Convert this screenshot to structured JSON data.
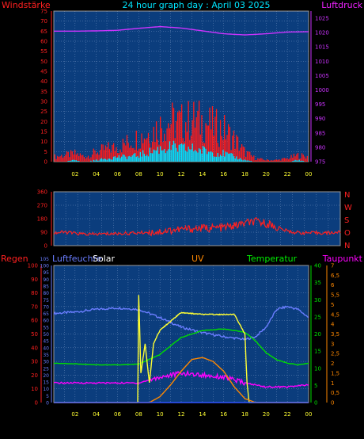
{
  "panel1": {
    "left_label": "Windstärke",
    "title": "24 hour graph day : April 03 2025",
    "right_label": "Luftdruck"
  },
  "panel3": {
    "labels": [
      "Regen",
      "Luftfeuchte",
      "Solar",
      "UV",
      "Temperatur",
      "Taupunkt"
    ]
  },
  "colors": {
    "background": "#000000",
    "plot_bg": "#0b3d7d",
    "grid": "#6f8fbf",
    "wind_speed": "#ff1a1a",
    "wind_gust": "#00e5ff",
    "pressure": "#cc33ff",
    "wind_dir": "#ff2020",
    "humidity": "#6a7dff",
    "solar": "#ffff33",
    "uv": "#ff8800",
    "temperature": "#00dd00",
    "dewpoint": "#ff00ff",
    "rain": "#3355ff"
  },
  "chart_data": [
    {
      "type": "line",
      "title": "24 hour graph day : April 03 2025",
      "xlabel": "",
      "x_tick_labels": [
        "02",
        "04",
        "06",
        "08",
        "10",
        "12",
        "14",
        "16",
        "18",
        "20",
        "22",
        "00"
      ],
      "y_left": {
        "label": "Windstärke",
        "ticks": [
          0,
          5,
          10,
          15,
          20,
          25,
          30,
          35,
          40,
          45,
          50,
          55,
          60,
          65,
          70,
          75
        ],
        "range": [
          0,
          75
        ]
      },
      "y_right": {
        "label": "Luftdruck",
        "ticks": [
          975,
          980,
          985,
          990,
          995,
          1000,
          1005,
          1010,
          1015,
          1020,
          1025
        ],
        "range": [
          975,
          1027.5
        ]
      },
      "series": [
        {
          "name": "",
          "axis": "left",
          "style": "bars",
          "x": [
            0,
            1,
            2,
            3,
            4,
            5,
            6,
            7,
            8,
            9,
            10,
            11,
            12,
            13,
            14,
            15,
            16,
            17,
            18,
            19,
            20,
            21,
            22,
            23,
            24
          ],
          "values": [
            3,
            4,
            5,
            3,
            6,
            8,
            9,
            12,
            15,
            18,
            22,
            25,
            24,
            26,
            25,
            22,
            20,
            14,
            6,
            2,
            1,
            1,
            2,
            4,
            3
          ]
        },
        {
          "name": "",
          "axis": "left",
          "style": "bars",
          "x": [
            0,
            1,
            2,
            3,
            4,
            5,
            6,
            7,
            8,
            9,
            10,
            11,
            12,
            13,
            14,
            15,
            16,
            17,
            18,
            19,
            20,
            21,
            22,
            23,
            24
          ],
          "values": [
            0,
            0,
            1,
            0,
            1,
            2,
            3,
            3,
            4,
            6,
            8,
            9,
            8,
            8,
            7,
            6,
            5,
            3,
            1,
            0,
            0,
            0,
            0,
            1,
            0
          ]
        },
        {
          "name": "",
          "axis": "right",
          "style": "line",
          "x": [
            0,
            2,
            4,
            6,
            8,
            10,
            12,
            14,
            16,
            18,
            20,
            22,
            24
          ],
          "values": [
            1020.5,
            1020.5,
            1020.6,
            1020.8,
            1021.5,
            1022.1,
            1021.6,
            1020.6,
            1019.6,
            1019.2,
            1019.6,
            1020.2,
            1020.3
          ]
        }
      ]
    },
    {
      "type": "line",
      "title": "",
      "y_left": {
        "ticks": [
          0,
          90,
          180,
          270,
          360
        ],
        "range": [
          0,
          360
        ]
      },
      "y_right": {
        "ticks": [
          "N",
          "W",
          "S",
          "O",
          "N"
        ]
      },
      "series": [
        {
          "name": "",
          "x": [
            0,
            1,
            2,
            3,
            4,
            5,
            6,
            7,
            8,
            9,
            10,
            11,
            12,
            13,
            14,
            15,
            16,
            17,
            18,
            19,
            20,
            21,
            22,
            23,
            24
          ],
          "values": [
            85,
            90,
            80,
            75,
            78,
            80,
            82,
            85,
            90,
            95,
            105,
            110,
            115,
            118,
            120,
            130,
            150,
            160,
            145,
            110,
            90,
            85,
            85,
            85,
            90
          ]
        }
      ]
    },
    {
      "type": "line",
      "title": "",
      "axes": {
        "rain": {
          "ticks": [
            0,
            10,
            20,
            30,
            40,
            50,
            60,
            70,
            80,
            90,
            100
          ],
          "range": [
            0,
            100
          ]
        },
        "humidity": {
          "ticks": [
            0,
            5,
            10,
            15,
            20,
            25,
            30,
            35,
            40,
            45,
            50,
            55,
            60,
            65,
            70,
            75,
            80,
            85,
            90,
            95,
            100,
            105
          ],
          "range": [
            0,
            100
          ]
        },
        "temperature": {
          "ticks": [
            0,
            5,
            10,
            15,
            20,
            25,
            30,
            35,
            40
          ],
          "range": [
            0,
            40
          ]
        },
        "dewpoint_uv": {
          "ticks": [
            0,
            0.5,
            1,
            1.5,
            2,
            2.5,
            3,
            3.5,
            4,
            4.5,
            5,
            5.5,
            6,
            6.5,
            7
          ],
          "range": [
            0,
            7
          ]
        }
      },
      "series": [
        {
          "name": "Luftfeuchte",
          "axis": "humidity",
          "x": [
            0,
            2,
            4,
            6,
            8,
            10,
            12,
            14,
            16,
            18,
            19,
            20,
            21,
            22,
            23,
            24
          ],
          "values": [
            65,
            66,
            68,
            69,
            68,
            62,
            55,
            51,
            48,
            46,
            48,
            55,
            68,
            70,
            68,
            62
          ]
        },
        {
          "name": "Temperatur",
          "axis": "temperature",
          "x": [
            0,
            2,
            4,
            6,
            8,
            10,
            12,
            14,
            16,
            18,
            19,
            20,
            21,
            22,
            23,
            24
          ],
          "values": [
            11.5,
            11.3,
            11.0,
            11.0,
            11.2,
            14.0,
            19.0,
            21.0,
            21.5,
            20.5,
            18.0,
            14.5,
            12.5,
            11.5,
            11.0,
            11.5
          ]
        },
        {
          "name": "Taupunkt",
          "axis": "dewpoint_uv",
          "x": [
            0,
            2,
            4,
            6,
            8,
            10,
            12,
            14,
            16,
            18,
            20,
            22,
            24
          ],
          "values": [
            1.0,
            1.0,
            1.0,
            1.0,
            1.0,
            1.3,
            1.5,
            1.4,
            1.3,
            1.0,
            0.8,
            0.8,
            0.9
          ]
        },
        {
          "name": "Solar",
          "axis": "dewpoint_uv",
          "x": [
            0,
            7.9,
            8.0,
            8.2,
            8.6,
            9.0,
            9.4,
            10,
            12,
            14,
            16,
            17,
            18,
            18.2,
            18.4,
            24
          ],
          "values": [
            0,
            0,
            5.5,
            1.5,
            3.0,
            1.0,
            3.0,
            3.7,
            4.6,
            4.5,
            4.5,
            4.5,
            3.5,
            1.0,
            0,
            0
          ]
        },
        {
          "name": "UV",
          "axis": "dewpoint_uv",
          "x": [
            0,
            9,
            10,
            11,
            12,
            13,
            14,
            15,
            16,
            17,
            18,
            19,
            24
          ],
          "values": [
            0,
            0,
            0.3,
            0.9,
            1.6,
            2.2,
            2.3,
            2.1,
            1.6,
            0.8,
            0.2,
            0,
            0
          ]
        },
        {
          "name": "Regen",
          "axis": "rain",
          "x": [
            0,
            24
          ],
          "values": [
            0,
            0
          ]
        }
      ]
    }
  ]
}
